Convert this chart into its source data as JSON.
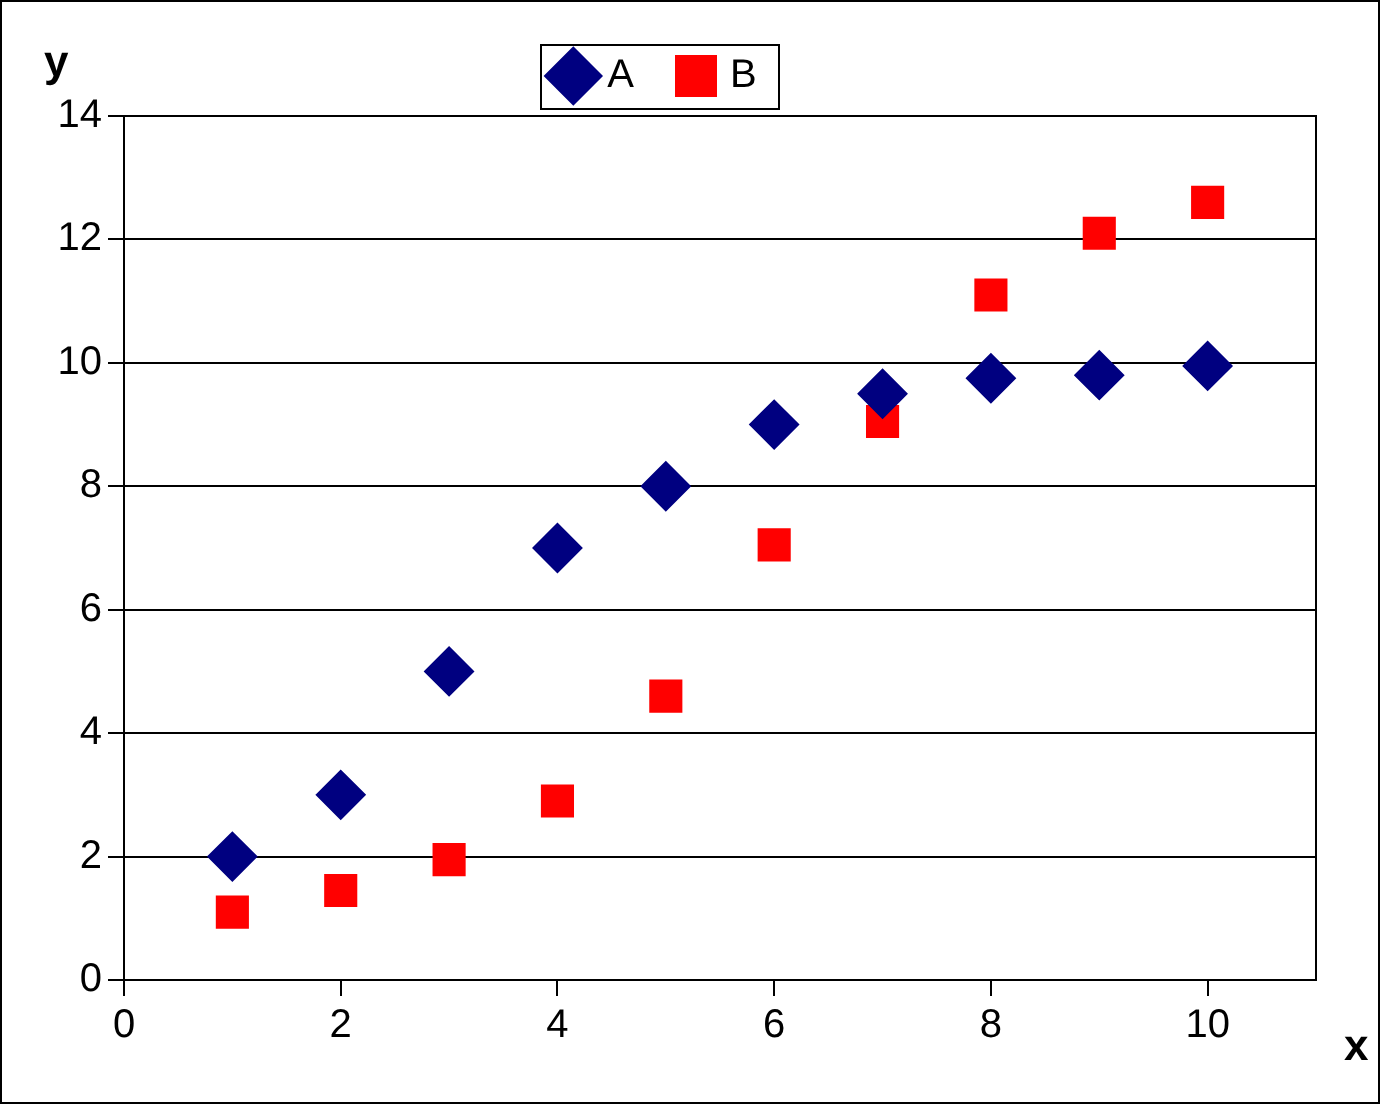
{
  "chart_data": {
    "type": "scatter",
    "xlabel": "x",
    "ylabel": "y",
    "xlim": [
      0,
      11
    ],
    "xticks": [
      0,
      2,
      4,
      6,
      8,
      10
    ],
    "ylim": [
      0,
      14
    ],
    "yticks": [
      0,
      2,
      4,
      6,
      8,
      10,
      12,
      14
    ],
    "grid": "y",
    "legend": "top",
    "x": [
      1,
      2,
      3,
      4,
      5,
      6,
      7,
      8,
      9,
      10
    ],
    "series": [
      {
        "name": "A",
        "color": "#000080",
        "marker": "diamond",
        "values": [
          2,
          3,
          5,
          7,
          8,
          9,
          9.5,
          9.75,
          9.8,
          9.95
        ]
      },
      {
        "name": "B",
        "color": "#ff0000",
        "marker": "square",
        "values": [
          1.1,
          1.45,
          1.95,
          2.9,
          4.6,
          7.05,
          9.05,
          11.1,
          12.1,
          12.6
        ]
      }
    ]
  }
}
